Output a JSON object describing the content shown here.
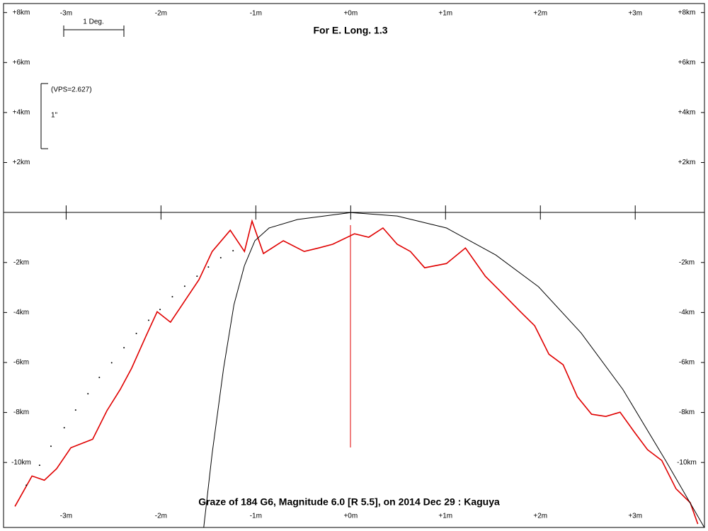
{
  "chart_data": {
    "type": "line",
    "title": "Graze of  184 G6,  Magnitude 6.0 [R 5.5],  on 2014 Dec 29  :  Kaguya",
    "annotations": {
      "longitude": "For E. Long. 1.3",
      "scale_deg": "1 Deg.",
      "vps": "(VPS=2.627)",
      "arcsec": "1\""
    },
    "xlim": [
      -3.66,
      3.73
    ],
    "ylim": [
      -12.6,
      8.36
    ],
    "xticks": [
      {
        "value": -3,
        "label": "-3m"
      },
      {
        "value": -2,
        "label": "-2m"
      },
      {
        "value": -1,
        "label": "-1m"
      },
      {
        "value": 0,
        "label": "+0m"
      },
      {
        "value": 1,
        "label": "+1m"
      },
      {
        "value": 2,
        "label": "+2m"
      },
      {
        "value": 3,
        "label": "+3m"
      }
    ],
    "yticks": [
      {
        "value": 8,
        "label": "+8km"
      },
      {
        "value": 6,
        "label": "+6km"
      },
      {
        "value": 4,
        "label": "+4km"
      },
      {
        "value": 2,
        "label": "+2km"
      },
      {
        "value": -2,
        "label": "-2km"
      },
      {
        "value": -4,
        "label": "-4km"
      },
      {
        "value": -6,
        "label": "-6km"
      },
      {
        "value": -8,
        "label": "-8km"
      },
      {
        "value": -10,
        "label": "-10km"
      }
    ],
    "series": [
      {
        "color": "#e00000",
        "mode": "line",
        "x": [
          -3.54,
          -3.36,
          -3.23,
          -3.1,
          -2.95,
          -2.72,
          -2.57,
          -2.43,
          -2.31,
          -2.16,
          -2.04,
          -1.9,
          -1.75,
          -1.6,
          -1.46,
          -1.27,
          -1.12,
          -1.04,
          -0.92,
          -0.71,
          -0.49,
          -0.34,
          -0.19,
          0.04,
          0.19,
          0.34,
          0.49,
          0.63,
          0.78,
          1.01,
          1.21,
          1.42,
          1.57,
          1.79,
          1.94,
          2.09,
          2.24,
          2.39,
          2.54,
          2.69,
          2.84,
          2.99,
          3.13,
          3.28,
          3.43,
          3.58,
          3.66
        ],
        "values": [
          -11.76,
          -10.54,
          -10.71,
          -10.25,
          -9.41,
          -9.07,
          -7.93,
          -7.08,
          -6.23,
          -4.96,
          -3.97,
          -4.39,
          -3.54,
          -2.69,
          -1.56,
          -0.71,
          -1.56,
          -0.34,
          -1.64,
          -1.13,
          -1.56,
          -1.42,
          -1.27,
          -0.85,
          -0.99,
          -0.62,
          -1.27,
          -1.56,
          -2.21,
          -2.04,
          -1.42,
          -2.55,
          -3.12,
          -3.97,
          -4.53,
          -5.67,
          -6.09,
          -7.37,
          -8.07,
          -8.16,
          -7.99,
          -8.78,
          -9.49,
          -9.92,
          -11.05,
          -11.61,
          -12.46
        ]
      },
      {
        "color": "#000000",
        "mode": "line",
        "x": [
          -1.55,
          -1.46,
          -1.34,
          -1.23,
          -1.12,
          -1.01,
          -0.86,
          -0.56,
          0,
          0.49,
          1.01,
          1.53,
          1.98,
          2.43,
          2.87,
          3.32,
          3.73
        ],
        "values": [
          -12.61,
          -9.63,
          -6.23,
          -3.68,
          -2.12,
          -1.13,
          -0.62,
          -0.28,
          0,
          -0.14,
          -0.62,
          -1.7,
          -2.97,
          -4.82,
          -7.08,
          -9.92,
          -12.61
        ]
      },
      {
        "color": "#000000",
        "mode": "dots",
        "x": [
          -3.42,
          -3.28,
          -3.16,
          -3.02,
          -2.9,
          -2.77,
          -2.65,
          -2.52,
          -2.39,
          -2.26,
          -2.13,
          -2.01,
          -1.88,
          -1.75,
          -1.62,
          -1.5,
          -1.37,
          -1.24
        ],
        "values": [
          -10.91,
          -10.11,
          -9.35,
          -8.61,
          -7.9,
          -7.25,
          -6.6,
          -6.01,
          -5.41,
          -4.84,
          -4.31,
          -3.88,
          -3.37,
          -2.95,
          -2.55,
          -2.18,
          -1.81,
          -1.53
        ]
      }
    ]
  }
}
